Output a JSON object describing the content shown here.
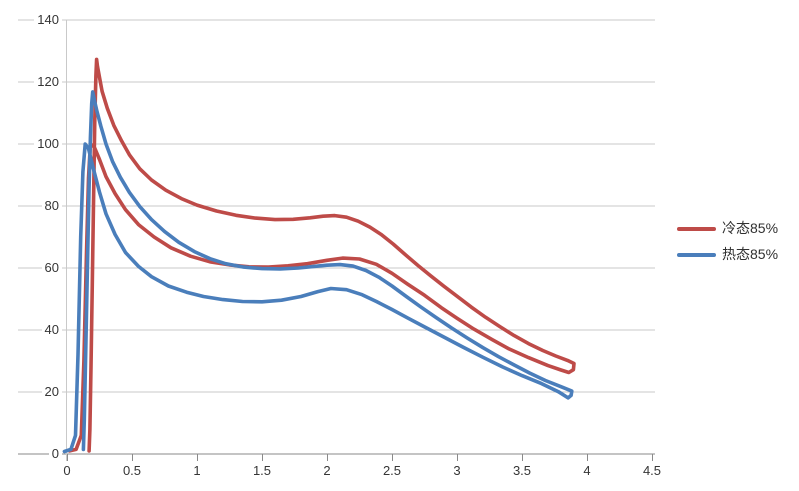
{
  "chart_data": {
    "type": "line",
    "title": "",
    "xlabel": "",
    "ylabel": "",
    "grid": "horizontal",
    "legend_position": "right",
    "x_axis": {
      "min": 0,
      "max": 4.5,
      "tick_step": 0.5,
      "ticks": [
        0,
        0.5,
        1,
        1.5,
        2,
        2.5,
        3,
        3.5,
        4,
        4.5
      ],
      "tick_labels": [
        "0",
        "0.5",
        "1",
        "1.5",
        "2",
        "2.5",
        "3",
        "3.5",
        "4",
        "4.5"
      ]
    },
    "y_axis": {
      "min": 0,
      "max": 140,
      "tick_step": 20,
      "ticks": [
        0,
        20,
        40,
        60,
        80,
        100,
        120,
        140
      ],
      "tick_labels": [
        "0",
        "20",
        "40",
        "60",
        "80",
        "100",
        "120",
        "140"
      ]
    },
    "series": [
      {
        "name": "冷态85%",
        "color": "#BE4B48",
        "shape": "closed loop: steep rise, lower branch peak ~100, upper branch peak ~127, joined at right end",
        "points": [
          [
            0.02,
            1
          ],
          [
            0.07,
            1.5
          ],
          [
            0.11,
            6
          ],
          [
            0.13,
            30
          ],
          [
            0.15,
            65
          ],
          [
            0.165,
            89
          ],
          [
            0.18,
            100
          ],
          [
            0.21,
            99
          ],
          [
            0.25,
            95
          ],
          [
            0.3,
            89.5
          ],
          [
            0.37,
            84
          ],
          [
            0.45,
            78.8
          ],
          [
            0.55,
            74
          ],
          [
            0.67,
            70
          ],
          [
            0.8,
            66.5
          ],
          [
            0.95,
            63.8
          ],
          [
            1.1,
            62
          ],
          [
            1.25,
            61
          ],
          [
            1.4,
            60.4
          ],
          [
            1.55,
            60.3
          ],
          [
            1.7,
            60.7
          ],
          [
            1.85,
            61.4
          ],
          [
            2.0,
            62.5
          ],
          [
            2.12,
            63.2
          ],
          [
            2.25,
            62.9
          ],
          [
            2.38,
            61.2
          ],
          [
            2.5,
            58.3
          ],
          [
            2.62,
            54.8
          ],
          [
            2.75,
            51.2
          ],
          [
            2.88,
            47.2
          ],
          [
            3.0,
            43.8
          ],
          [
            3.13,
            40.3
          ],
          [
            3.27,
            36.9
          ],
          [
            3.4,
            33.9
          ],
          [
            3.55,
            31.1
          ],
          [
            3.7,
            28.5
          ],
          [
            3.8,
            27.1
          ],
          [
            3.86,
            26.3
          ],
          [
            3.895,
            27.2
          ],
          [
            3.9,
            29.2
          ],
          [
            3.85,
            30.2
          ],
          [
            3.76,
            31.6
          ],
          [
            3.66,
            33.4
          ],
          [
            3.55,
            35.6
          ],
          [
            3.44,
            38.2
          ],
          [
            3.33,
            41.1
          ],
          [
            3.22,
            44.1
          ],
          [
            3.11,
            47.4
          ],
          [
            3.0,
            50.9
          ],
          [
            2.9,
            54.1
          ],
          [
            2.8,
            57.4
          ],
          [
            2.7,
            60.8
          ],
          [
            2.6,
            64.4
          ],
          [
            2.51,
            67.7
          ],
          [
            2.42,
            70.7
          ],
          [
            2.33,
            73.2
          ],
          [
            2.24,
            75.1
          ],
          [
            2.15,
            76.4
          ],
          [
            2.06,
            76.9
          ],
          [
            1.97,
            76.7
          ],
          [
            1.87,
            76.2
          ],
          [
            1.74,
            75.7
          ],
          [
            1.6,
            75.6
          ],
          [
            1.45,
            76.1
          ],
          [
            1.3,
            77
          ],
          [
            1.15,
            78.4
          ],
          [
            1.0,
            80.3
          ],
          [
            0.88,
            82.4
          ],
          [
            0.76,
            85.1
          ],
          [
            0.65,
            88.4
          ],
          [
            0.56,
            92
          ],
          [
            0.48,
            96.5
          ],
          [
            0.42,
            101
          ],
          [
            0.36,
            106
          ],
          [
            0.31,
            111.5
          ],
          [
            0.27,
            117
          ],
          [
            0.25,
            121.5
          ],
          [
            0.235,
            125
          ],
          [
            0.228,
            127.3
          ],
          [
            0.222,
            122
          ],
          [
            0.214,
            108
          ],
          [
            0.205,
            85
          ],
          [
            0.195,
            55
          ],
          [
            0.185,
            28
          ],
          [
            0.176,
            8
          ],
          [
            0.17,
            1
          ]
        ]
      },
      {
        "name": "热态85%",
        "color": "#4A7EBB",
        "shape": "closed loop: steep rise, lower branch peak ~100, upper branch peak ~117, joined at right end",
        "points": [
          [
            -0.02,
            0.8
          ],
          [
            0.03,
            1.5
          ],
          [
            0.065,
            6
          ],
          [
            0.085,
            32
          ],
          [
            0.105,
            70
          ],
          [
            0.122,
            91
          ],
          [
            0.14,
            100
          ],
          [
            0.165,
            98.5
          ],
          [
            0.2,
            92.5
          ],
          [
            0.25,
            84.5
          ],
          [
            0.3,
            77.5
          ],
          [
            0.37,
            70.8
          ],
          [
            0.45,
            65
          ],
          [
            0.55,
            60.5
          ],
          [
            0.65,
            57.2
          ],
          [
            0.78,
            54.2
          ],
          [
            0.92,
            52.2
          ],
          [
            1.05,
            50.8
          ],
          [
            1.2,
            49.8
          ],
          [
            1.35,
            49.2
          ],
          [
            1.5,
            49.1
          ],
          [
            1.65,
            49.6
          ],
          [
            1.8,
            50.8
          ],
          [
            1.93,
            52.4
          ],
          [
            2.03,
            53.4
          ],
          [
            2.15,
            53
          ],
          [
            2.27,
            51.4
          ],
          [
            2.38,
            49.2
          ],
          [
            2.5,
            46.6
          ],
          [
            2.62,
            43.9
          ],
          [
            2.75,
            41
          ],
          [
            2.9,
            37.7
          ],
          [
            3.05,
            34.4
          ],
          [
            3.2,
            31.2
          ],
          [
            3.35,
            28.1
          ],
          [
            3.5,
            25.3
          ],
          [
            3.65,
            22.7
          ],
          [
            3.78,
            20.1
          ],
          [
            3.855,
            18.1
          ],
          [
            3.878,
            18.9
          ],
          [
            3.883,
            20.3
          ],
          [
            3.8,
            21.7
          ],
          [
            3.68,
            23.7
          ],
          [
            3.56,
            26.1
          ],
          [
            3.44,
            28.7
          ],
          [
            3.32,
            31.4
          ],
          [
            3.2,
            34.3
          ],
          [
            3.08,
            37.4
          ],
          [
            2.96,
            40.6
          ],
          [
            2.84,
            44
          ],
          [
            2.72,
            47.5
          ],
          [
            2.61,
            50.8
          ],
          [
            2.5,
            54.2
          ],
          [
            2.4,
            57
          ],
          [
            2.3,
            59.2
          ],
          [
            2.2,
            60.6
          ],
          [
            2.1,
            61.1
          ],
          [
            2.0,
            60.9
          ],
          [
            1.9,
            60.5
          ],
          [
            1.78,
            60
          ],
          [
            1.64,
            59.7
          ],
          [
            1.5,
            59.8
          ],
          [
            1.36,
            60.3
          ],
          [
            1.22,
            61.4
          ],
          [
            1.1,
            63
          ],
          [
            0.98,
            65.3
          ],
          [
            0.86,
            68.3
          ],
          [
            0.75,
            71.8
          ],
          [
            0.65,
            75.6
          ],
          [
            0.56,
            79.8
          ],
          [
            0.48,
            84.4
          ],
          [
            0.41,
            89.3
          ],
          [
            0.35,
            94.4
          ],
          [
            0.3,
            100
          ],
          [
            0.26,
            105.8
          ],
          [
            0.23,
            110.6
          ],
          [
            0.21,
            114.3
          ],
          [
            0.198,
            116.8
          ],
          [
            0.19,
            113
          ],
          [
            0.18,
            102
          ],
          [
            0.169,
            85
          ],
          [
            0.157,
            60
          ],
          [
            0.145,
            34
          ],
          [
            0.133,
            11
          ],
          [
            0.126,
            1.5
          ]
        ]
      }
    ],
    "style_colors": {
      "gridline": "#C9C9C9",
      "axis_line": "#8A8A8A",
      "tick_text": "#353535"
    }
  },
  "legend": {
    "items": [
      {
        "label": "冷态85%",
        "color": "#BE4B48"
      },
      {
        "label": "热态85%",
        "color": "#4A7EBB"
      }
    ]
  }
}
